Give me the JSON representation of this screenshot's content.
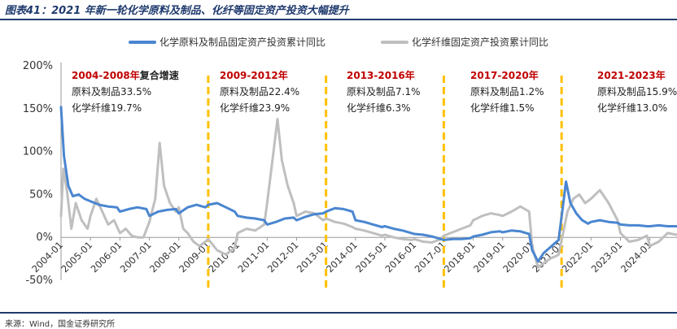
{
  "header": {
    "title": "图表41：2021 年新一轮化学原料及制品、化纤等固定资产投资大幅提升"
  },
  "footer": {
    "source": "来源：Wind，国金证券研究所"
  },
  "colors": {
    "series_raw": "#4a86d0",
    "series_fiber": "#bfbfbf",
    "divider": "#ffc000",
    "annotation_head": "#c00000",
    "rule": "#1f3a6e"
  },
  "chart_data": {
    "type": "line",
    "title": "",
    "xlabel": "",
    "ylabel": "",
    "ylim": [
      -50,
      200
    ],
    "yticks": [
      "200%",
      "150%",
      "100%",
      "50%",
      "0%",
      "-50%"
    ],
    "xticks": [
      "2004-01",
      "2005-01",
      "2006-01",
      "2007-01",
      "2008-01",
      "2009-01",
      "2010-01",
      "2011-01",
      "2012-01",
      "2013-01",
      "2014-01",
      "2015-01",
      "2016-01",
      "2017-01",
      "2018-01",
      "2019-01",
      "2020-01",
      "2021-01",
      "2022-01",
      "2023-01",
      "2024-01"
    ],
    "x_range": [
      2004.0,
      2024.92
    ],
    "legend_position": "top",
    "series": [
      {
        "name": "化学原料及制品固定资产投资累计同比",
        "points": [
          [
            2004.0,
            152
          ],
          [
            2004.1,
            95
          ],
          [
            2004.25,
            60
          ],
          [
            2004.4,
            48
          ],
          [
            2004.6,
            50
          ],
          [
            2004.8,
            45
          ],
          [
            2005.0,
            42
          ],
          [
            2005.3,
            38
          ],
          [
            2005.6,
            36
          ],
          [
            2005.9,
            35
          ],
          [
            2006.0,
            30
          ],
          [
            2006.3,
            33
          ],
          [
            2006.6,
            35
          ],
          [
            2006.9,
            33
          ],
          [
            2007.0,
            25
          ],
          [
            2007.3,
            30
          ],
          [
            2007.6,
            32
          ],
          [
            2007.9,
            33
          ],
          [
            2008.0,
            28
          ],
          [
            2008.3,
            35
          ],
          [
            2008.6,
            38
          ],
          [
            2008.9,
            35
          ],
          [
            2009.0,
            38
          ],
          [
            2009.3,
            40
          ],
          [
            2009.6,
            35
          ],
          [
            2009.9,
            30
          ],
          [
            2010.0,
            25
          ],
          [
            2010.3,
            23
          ],
          [
            2010.6,
            22
          ],
          [
            2010.9,
            20
          ],
          [
            2011.0,
            15
          ],
          [
            2011.3,
            18
          ],
          [
            2011.6,
            22
          ],
          [
            2011.9,
            23
          ],
          [
            2012.0,
            20
          ],
          [
            2012.3,
            24
          ],
          [
            2012.6,
            27
          ],
          [
            2012.9,
            28
          ],
          [
            2013.0,
            30
          ],
          [
            2013.3,
            34
          ],
          [
            2013.6,
            33
          ],
          [
            2013.9,
            30
          ],
          [
            2014.0,
            20
          ],
          [
            2014.3,
            18
          ],
          [
            2014.6,
            15
          ],
          [
            2014.9,
            12
          ],
          [
            2015.0,
            13
          ],
          [
            2015.3,
            10
          ],
          [
            2015.6,
            8
          ],
          [
            2015.9,
            5
          ],
          [
            2016.0,
            4
          ],
          [
            2016.3,
            3
          ],
          [
            2016.6,
            1
          ],
          [
            2016.9,
            -2
          ],
          [
            2017.0,
            -3
          ],
          [
            2017.3,
            -2
          ],
          [
            2017.6,
            -2
          ],
          [
            2017.9,
            -1
          ],
          [
            2018.0,
            1
          ],
          [
            2018.3,
            3
          ],
          [
            2018.6,
            6
          ],
          [
            2018.9,
            7
          ],
          [
            2019.0,
            6
          ],
          [
            2019.3,
            8
          ],
          [
            2019.6,
            7
          ],
          [
            2019.9,
            4
          ],
          [
            2020.0,
            -15
          ],
          [
            2020.2,
            -28
          ],
          [
            2020.4,
            -18
          ],
          [
            2020.6,
            -12
          ],
          [
            2020.8,
            -6
          ],
          [
            2020.9,
            -3
          ],
          [
            2021.05,
            38
          ],
          [
            2021.15,
            65
          ],
          [
            2021.3,
            40
          ],
          [
            2021.5,
            28
          ],
          [
            2021.7,
            20
          ],
          [
            2021.9,
            16
          ],
          [
            2022.0,
            18
          ],
          [
            2022.3,
            20
          ],
          [
            2022.6,
            18
          ],
          [
            2022.9,
            17
          ],
          [
            2023.0,
            15
          ],
          [
            2023.3,
            14
          ],
          [
            2023.6,
            14
          ],
          [
            2023.9,
            13
          ],
          [
            2024.0,
            13
          ],
          [
            2024.3,
            14
          ],
          [
            2024.6,
            13
          ],
          [
            2024.9,
            13
          ]
        ]
      },
      {
        "name": "化学纤维固定资产投资累计同比",
        "points": [
          [
            2004.0,
            25
          ],
          [
            2004.08,
            80
          ],
          [
            2004.2,
            55
          ],
          [
            2004.35,
            10
          ],
          [
            2004.5,
            40
          ],
          [
            2004.7,
            20
          ],
          [
            2004.9,
            10
          ],
          [
            2005.0,
            25
          ],
          [
            2005.2,
            45
          ],
          [
            2005.4,
            30
          ],
          [
            2005.6,
            15
          ],
          [
            2005.8,
            20
          ],
          [
            2006.0,
            5
          ],
          [
            2006.2,
            10
          ],
          [
            2006.4,
            2
          ],
          [
            2006.6,
            0
          ],
          [
            2006.8,
            0
          ],
          [
            2007.0,
            18
          ],
          [
            2007.2,
            45
          ],
          [
            2007.35,
            110
          ],
          [
            2007.5,
            60
          ],
          [
            2007.7,
            40
          ],
          [
            2007.9,
            30
          ],
          [
            2008.0,
            35
          ],
          [
            2008.15,
            10
          ],
          [
            2008.3,
            5
          ],
          [
            2008.5,
            -5
          ],
          [
            2008.7,
            -10
          ],
          [
            2008.9,
            -5
          ],
          [
            2009.0,
            -2
          ],
          [
            2009.3,
            -15
          ],
          [
            2009.6,
            -20
          ],
          [
            2009.9,
            -12
          ],
          [
            2010.0,
            5
          ],
          [
            2010.3,
            10
          ],
          [
            2010.6,
            8
          ],
          [
            2010.9,
            15
          ],
          [
            2011.0,
            40
          ],
          [
            2011.2,
            95
          ],
          [
            2011.35,
            138
          ],
          [
            2011.5,
            90
          ],
          [
            2011.7,
            60
          ],
          [
            2011.9,
            40
          ],
          [
            2012.0,
            25
          ],
          [
            2012.3,
            30
          ],
          [
            2012.6,
            28
          ],
          [
            2012.9,
            20
          ],
          [
            2013.0,
            22
          ],
          [
            2013.3,
            18
          ],
          [
            2013.6,
            16
          ],
          [
            2013.9,
            12
          ],
          [
            2014.0,
            10
          ],
          [
            2014.3,
            8
          ],
          [
            2014.6,
            5
          ],
          [
            2014.9,
            2
          ],
          [
            2015.0,
            3
          ],
          [
            2015.3,
            0
          ],
          [
            2015.6,
            -2
          ],
          [
            2015.9,
            -3
          ],
          [
            2016.0,
            -2
          ],
          [
            2016.3,
            -5
          ],
          [
            2016.6,
            -6
          ],
          [
            2016.9,
            -2
          ],
          [
            2017.0,
            2
          ],
          [
            2017.3,
            6
          ],
          [
            2017.6,
            10
          ],
          [
            2017.9,
            14
          ],
          [
            2018.0,
            20
          ],
          [
            2018.3,
            25
          ],
          [
            2018.6,
            28
          ],
          [
            2018.9,
            26
          ],
          [
            2019.0,
            25
          ],
          [
            2019.3,
            30
          ],
          [
            2019.6,
            36
          ],
          [
            2019.9,
            30
          ],
          [
            2020.0,
            -10
          ],
          [
            2020.2,
            -35
          ],
          [
            2020.4,
            -30
          ],
          [
            2020.6,
            -25
          ],
          [
            2020.8,
            -22
          ],
          [
            2020.9,
            -20
          ],
          [
            2021.05,
            5
          ],
          [
            2021.2,
            30
          ],
          [
            2021.4,
            45
          ],
          [
            2021.6,
            50
          ],
          [
            2021.8,
            40
          ],
          [
            2022.0,
            45
          ],
          [
            2022.3,
            55
          ],
          [
            2022.6,
            40
          ],
          [
            2022.9,
            20
          ],
          [
            2023.0,
            5
          ],
          [
            2023.3,
            -5
          ],
          [
            2023.6,
            -3
          ],
          [
            2023.9,
            2
          ],
          [
            2024.0,
            -10
          ],
          [
            2024.3,
            -5
          ],
          [
            2024.6,
            5
          ],
          [
            2024.9,
            3
          ]
        ]
      }
    ],
    "dividers": [
      2009.0,
      2013.0,
      2017.0,
      2021.0
    ],
    "annotations": [
      {
        "head": "2004-2008年",
        "tail": "复合增速",
        "line1": "原料及制品33.5%",
        "line2": "化学纤维19.7%"
      },
      {
        "head": "2009-2012年",
        "tail": "",
        "line1": "原料及制品22.4%",
        "line2": "化学纤维23.9%"
      },
      {
        "head": "2013-2016年",
        "tail": "",
        "line1": "原料及制品7.1%",
        "line2": "化学纤维6.3%"
      },
      {
        "head": "2017-2020年",
        "tail": "",
        "line1": "原料及制品1.2%",
        "line2": "化学纤维1.5%"
      },
      {
        "head": "2021-2023年",
        "tail": "",
        "line1": "原料及制品15.9%",
        "line2": "化学纤维13.0%"
      }
    ]
  }
}
